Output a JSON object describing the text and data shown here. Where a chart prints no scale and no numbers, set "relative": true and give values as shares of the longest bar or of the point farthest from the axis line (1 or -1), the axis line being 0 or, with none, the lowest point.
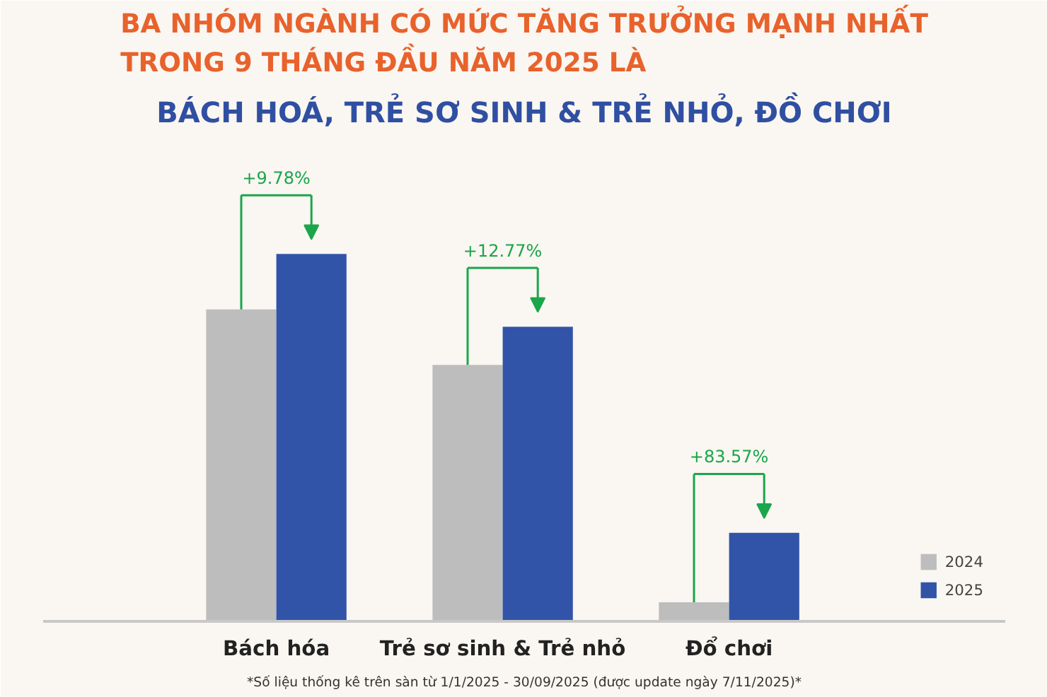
{
  "chart_data": {
    "type": "bar",
    "relative": true,
    "title": "BA NHÓM NGÀNH CÓ MỨC TĂNG TRƯỞNG MẠNH NHẤT\nTRONG 9 THÁNG ĐẦU NĂM 2025 LÀ",
    "subtitle": "BÁCH HOÁ, TRẺ SƠ SINH & TRẺ NHỎ, ĐỒ CHƠI",
    "categories": [
      "Bách hóa",
      "Trẻ sơ sinh & Trẻ nhỏ",
      "Đổ chơi"
    ],
    "series": [
      {
        "name": "2024",
        "color": "#bdbdbd",
        "values": [
          0.849,
          0.698,
          0.052
        ]
      },
      {
        "name": "2025",
        "color": "#3154a9",
        "values": [
          1,
          0.802,
          0.241
        ]
      }
    ],
    "annotations": [
      "+9.78%",
      "+12.77%",
      "+83.57%",
      "*Số liệu thống kê trên sàn từ 1/1/2025 - 30/09/2025 (được update ngày 7/11/2025)*"
    ],
    "legend": "bottom right",
    "grid": false
  }
}
